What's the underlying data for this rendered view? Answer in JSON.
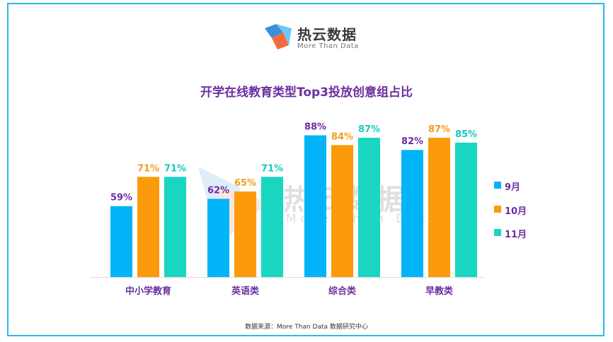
{
  "logo": {
    "name": "热云数据",
    "tagline": "More Than Data"
  },
  "colors": {
    "sep": "#00b4f7",
    "oct": "#fb9a0b",
    "nov": "#19d6c2",
    "title": "#6b2fa0",
    "frame": "#2ab8e6"
  },
  "chart_data": {
    "type": "bar",
    "title": "开学在线教育类型Top3投放创意组占比",
    "categories": [
      "中小学教育",
      "英语类",
      "综合类",
      "早教类"
    ],
    "series": [
      {
        "name": "9月",
        "values": [
          59,
          62,
          88,
          82
        ],
        "labels": [
          "59%",
          "62%",
          "88%",
          "82%"
        ],
        "color": "#00b4f7",
        "label_color": "#6b2fa0"
      },
      {
        "name": "10月",
        "values": [
          71,
          65,
          84,
          87
        ],
        "labels": [
          "71%",
          "65%",
          "84%",
          "87%"
        ],
        "color": "#fb9a0b",
        "label_color": "#f49d18"
      },
      {
        "name": "11月",
        "values": [
          71,
          71,
          87,
          85
        ],
        "labels": [
          "71%",
          "71%",
          "87%",
          "85%"
        ],
        "color": "#19d6c2",
        "label_color": "#17c9b9"
      }
    ],
    "unit": "%",
    "ylim": [
      30,
      100
    ],
    "grid": false,
    "legend_position": "right"
  },
  "source": "数据来源：More Than Data 数据研究中心"
}
